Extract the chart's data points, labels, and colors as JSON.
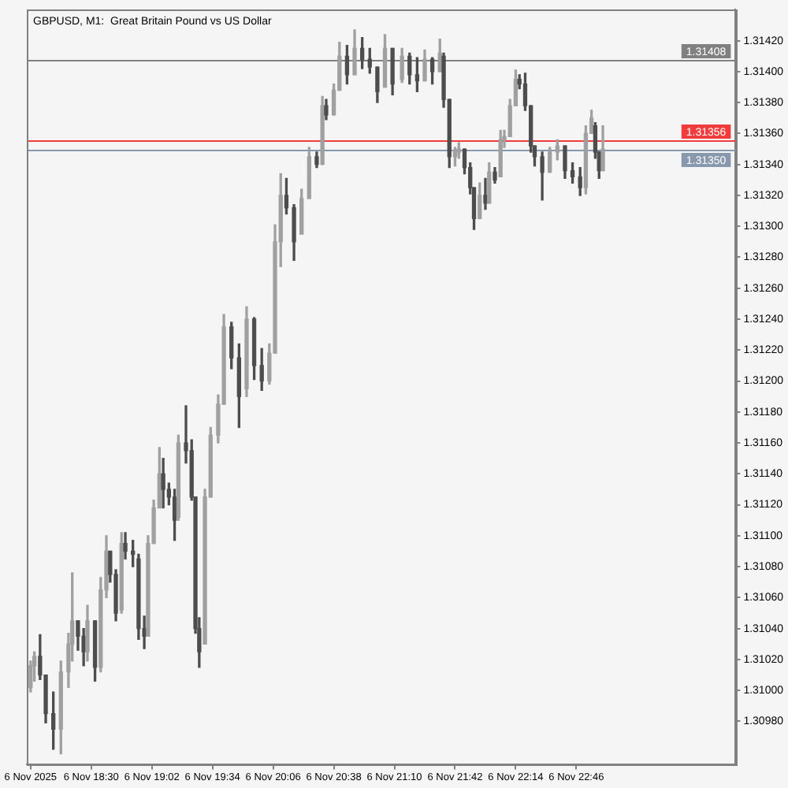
{
  "chart_data": {
    "type": "candlestick",
    "title": "GBPUSD, M1:",
    "subtitle": "Great Britain Pound vs US Dollar",
    "x": [
      "2025-11-06T17:58",
      "2025-11-06T18:00",
      "2025-11-06T18:03",
      "2025-11-06T18:06",
      "2025-11-06T18:10",
      "2025-11-06T18:14",
      "2025-11-06T18:18",
      "2025-11-06T18:20",
      "2025-11-06T18:23",
      "2025-11-06T18:26",
      "2025-11-06T18:28",
      "2025-11-06T18:32",
      "2025-11-06T18:35",
      "2025-11-06T18:38",
      "2025-11-06T18:40",
      "2025-11-06T18:43",
      "2025-11-06T18:46",
      "2025-11-06T18:48",
      "2025-11-06T18:52",
      "2025-11-06T18:55",
      "2025-11-06T18:58",
      "2025-11-06T19:00",
      "2025-11-06T19:03",
      "2025-11-06T19:06",
      "2025-11-06T19:08",
      "2025-11-06T19:11",
      "2025-11-06T19:14",
      "2025-11-06T19:16",
      "2025-11-06T19:20",
      "2025-11-06T19:23",
      "2025-11-06T19:25",
      "2025-11-06T19:27",
      "2025-11-06T19:30",
      "2025-11-06T19:33",
      "2025-11-06T19:37",
      "2025-11-06T19:40",
      "2025-11-06T19:44",
      "2025-11-06T19:48",
      "2025-11-06T19:52",
      "2025-11-06T19:56",
      "2025-11-06T20:00",
      "2025-11-06T20:04",
      "2025-11-06T20:07",
      "2025-11-06T20:10",
      "2025-11-06T20:13",
      "2025-11-06T20:17",
      "2025-11-06T20:21",
      "2025-11-06T20:25",
      "2025-11-06T20:29",
      "2025-11-06T20:32",
      "2025-11-06T20:34",
      "2025-11-06T20:38",
      "2025-11-06T20:41",
      "2025-11-06T20:45",
      "2025-11-06T20:49",
      "2025-11-06T20:53",
      "2025-11-06T20:57",
      "2025-11-06T21:01",
      "2025-11-06T21:05",
      "2025-11-06T21:09",
      "2025-11-06T21:14",
      "2025-11-06T21:18",
      "2025-11-06T21:22",
      "2025-11-06T21:26",
      "2025-11-06T21:30",
      "2025-11-06T21:34",
      "2025-11-06T21:36",
      "2025-11-06T21:39",
      "2025-11-06T21:42",
      "2025-11-06T21:44",
      "2025-11-06T21:47",
      "2025-11-06T21:50",
      "2025-11-06T21:52",
      "2025-11-06T21:55",
      "2025-11-06T21:58",
      "2025-11-06T22:00",
      "2025-11-06T22:03",
      "2025-11-06T22:06",
      "2025-11-06T22:08",
      "2025-11-06T22:11",
      "2025-11-06T22:14",
      "2025-11-06T22:16",
      "2025-11-06T22:19",
      "2025-11-06T22:22",
      "2025-11-06T22:24",
      "2025-11-06T22:28",
      "2025-11-06T22:32",
      "2025-11-06T22:36",
      "2025-11-06T22:40",
      "2025-11-06T22:44",
      "2025-11-06T22:48",
      "2025-11-06T22:51",
      "2025-11-06T22:54",
      "2025-11-06T22:56",
      "2025-11-06T22:58",
      "2025-11-06T23:00"
    ],
    "ohlc": [
      [
        1.31002,
        1.31019,
        1.30999,
        1.31016
      ],
      [
        1.31016,
        1.31025,
        1.31006,
        1.31022
      ],
      [
        1.31022,
        1.31036,
        1.31007,
        1.3101
      ],
      [
        1.3101,
        1.3101,
        1.30979,
        1.30985
      ],
      [
        1.30985,
        1.30999,
        1.30962,
        1.30975
      ],
      [
        1.30975,
        1.31019,
        1.30959,
        1.31012
      ],
      [
        1.31012,
        1.31037,
        1.31002,
        1.3103
      ],
      [
        1.3103,
        1.31076,
        1.31019,
        1.31045
      ],
      [
        1.31045,
        1.31045,
        1.31026,
        1.31035
      ],
      [
        1.31035,
        1.3104,
        1.31016,
        1.31025
      ],
      [
        1.31025,
        1.31055,
        1.31019,
        1.31045
      ],
      [
        1.31045,
        1.31045,
        1.31006,
        1.31015
      ],
      [
        1.31015,
        1.31073,
        1.31012,
        1.31065
      ],
      [
        1.31065,
        1.311,
        1.3106,
        1.3109
      ],
      [
        1.3109,
        1.3109,
        1.3107,
        1.31075
      ],
      [
        1.31075,
        1.31078,
        1.31045,
        1.3105
      ],
      [
        1.31052,
        1.31102,
        1.3105,
        1.31095
      ],
      [
        1.31095,
        1.31102,
        1.31085,
        1.3109
      ],
      [
        1.3109,
        1.31097,
        1.3108,
        1.31088
      ],
      [
        1.31085,
        1.31088,
        1.31033,
        1.3104
      ],
      [
        1.3104,
        1.31048,
        1.31027,
        1.31035
      ],
      [
        1.31035,
        1.311,
        1.31035,
        1.31095
      ],
      [
        1.31095,
        1.31123,
        1.31095,
        1.31118
      ],
      [
        1.31118,
        1.31157,
        1.31118,
        1.3114
      ],
      [
        1.3114,
        1.3115,
        1.31118,
        1.3113
      ],
      [
        1.3113,
        1.31134,
        1.3112,
        1.31125
      ],
      [
        1.31125,
        1.3113,
        1.31097,
        1.3111
      ],
      [
        1.31112,
        1.31165,
        1.3111,
        1.3116
      ],
      [
        1.3116,
        1.31184,
        1.31147,
        1.31155
      ],
      [
        1.31155,
        1.31162,
        1.31123,
        1.31125
      ],
      [
        1.31125,
        1.31125,
        1.31037,
        1.3104
      ],
      [
        1.3104,
        1.31047,
        1.31015,
        1.31025
      ],
      [
        1.3103,
        1.3113,
        1.3103,
        1.31125
      ],
      [
        1.31125,
        1.3117,
        1.31125,
        1.31165
      ],
      [
        1.31165,
        1.31191,
        1.3116,
        1.31185
      ],
      [
        1.31185,
        1.31243,
        1.31185,
        1.31235
      ],
      [
        1.31235,
        1.31238,
        1.31208,
        1.31215
      ],
      [
        1.31215,
        1.31224,
        1.3117,
        1.3119
      ],
      [
        1.31195,
        1.31248,
        1.3119,
        1.3124
      ],
      [
        1.3124,
        1.31241,
        1.31201,
        1.3121
      ],
      [
        1.3121,
        1.31221,
        1.31194,
        1.312
      ],
      [
        1.312,
        1.31224,
        1.31198,
        1.31218
      ],
      [
        1.31218,
        1.31301,
        1.31218,
        1.3129
      ],
      [
        1.3129,
        1.31334,
        1.31274,
        1.3132
      ],
      [
        1.3132,
        1.31331,
        1.31308,
        1.31312
      ],
      [
        1.31312,
        1.31314,
        1.31278,
        1.3129
      ],
      [
        1.31295,
        1.31324,
        1.31295,
        1.31318
      ],
      [
        1.31318,
        1.31351,
        1.31318,
        1.31345
      ],
      [
        1.31345,
        1.31348,
        1.31338,
        1.3134
      ],
      [
        1.3134,
        1.31384,
        1.3134,
        1.31378
      ],
      [
        1.31378,
        1.31382,
        1.31369,
        1.31372
      ],
      [
        1.31372,
        1.31392,
        1.31372,
        1.31388
      ],
      [
        1.31388,
        1.31419,
        1.31388,
        1.3141
      ],
      [
        1.3141,
        1.31417,
        1.31392,
        1.31398
      ],
      [
        1.31398,
        1.31427,
        1.31398,
        1.31415
      ],
      [
        1.31415,
        1.31422,
        1.31402,
        1.31408
      ],
      [
        1.31408,
        1.31415,
        1.31399,
        1.31403
      ],
      [
        1.31403,
        1.31403,
        1.3138,
        1.31387
      ],
      [
        1.3139,
        1.31424,
        1.3139,
        1.31415
      ],
      [
        1.31415,
        1.31415,
        1.31385,
        1.31392
      ],
      [
        1.31395,
        1.31415,
        1.31393,
        1.3141
      ],
      [
        1.3141,
        1.31412,
        1.31392,
        1.31398
      ],
      [
        1.31398,
        1.31409,
        1.31387,
        1.31394
      ],
      [
        1.31394,
        1.31414,
        1.31394,
        1.31408
      ],
      [
        1.31408,
        1.31409,
        1.31392,
        1.314
      ],
      [
        1.314,
        1.31421,
        1.314,
        1.31412
      ],
      [
        1.3141,
        1.31412,
        1.31377,
        1.31382
      ],
      [
        1.31382,
        1.31382,
        1.31338,
        1.31345
      ],
      [
        1.31345,
        1.31351,
        1.31339,
        1.31348
      ],
      [
        1.31348,
        1.31354,
        1.31344,
        1.3135
      ],
      [
        1.3135,
        1.3135,
        1.31334,
        1.31338
      ],
      [
        1.31338,
        1.31341,
        1.31321,
        1.31325
      ],
      [
        1.31325,
        1.31325,
        1.31298,
        1.31305
      ],
      [
        1.31305,
        1.31328,
        1.31305,
        1.3132
      ],
      [
        1.3132,
        1.31331,
        1.31311,
        1.31315
      ],
      [
        1.31315,
        1.31341,
        1.31315,
        1.31335
      ],
      [
        1.31335,
        1.31338,
        1.31328,
        1.3133
      ],
      [
        1.31332,
        1.31362,
        1.31332,
        1.31356
      ],
      [
        1.31356,
        1.31362,
        1.31351,
        1.31358
      ],
      [
        1.31358,
        1.31382,
        1.31358,
        1.31378
      ],
      [
        1.31378,
        1.31401,
        1.31378,
        1.31395
      ],
      [
        1.31395,
        1.31398,
        1.31389,
        1.31392
      ],
      [
        1.31392,
        1.31399,
        1.31375,
        1.31378
      ],
      [
        1.31378,
        1.31378,
        1.31348,
        1.31352
      ],
      [
        1.31352,
        1.31352,
        1.31339,
        1.31345
      ],
      [
        1.31345,
        1.31348,
        1.31317,
        1.31335
      ],
      [
        1.31335,
        1.31351,
        1.31335,
        1.31348
      ],
      [
        1.31348,
        1.31356,
        1.31343,
        1.31352
      ],
      [
        1.31352,
        1.31352,
        1.31331,
        1.31336
      ],
      [
        1.31336,
        1.31341,
        1.31328,
        1.31332
      ],
      [
        1.31332,
        1.31338,
        1.3132,
        1.31325
      ],
      [
        1.31325,
        1.31365,
        1.31321,
        1.3136
      ],
      [
        1.3136,
        1.31375,
        1.3136,
        1.3137
      ],
      [
        1.31365,
        1.31367,
        1.31344,
        1.31348
      ],
      [
        1.31348,
        1.31348,
        1.31331,
        1.31336
      ],
      [
        1.31336,
        1.31365,
        1.31336,
        1.3135
      ]
    ],
    "colors": [
      "#a0a0a0",
      "#a0a0a0",
      "#4d4d4d",
      "#4d4d4d",
      "#4d4d4d",
      "#a0a0a0",
      "#a0a0a0",
      "#a0a0a0",
      "#4d4d4d",
      "#4d4d4d",
      "#a0a0a0",
      "#4d4d4d",
      "#a0a0a0",
      "#a0a0a0",
      "#4d4d4d",
      "#4d4d4d",
      "#a0a0a0",
      "#4d4d4d",
      "#4d4d4d",
      "#4d4d4d",
      "#4d4d4d",
      "#a0a0a0",
      "#a0a0a0",
      "#a0a0a0",
      "#4d4d4d",
      "#4d4d4d",
      "#4d4d4d",
      "#a0a0a0",
      "#4d4d4d",
      "#4d4d4d",
      "#4d4d4d",
      "#4d4d4d",
      "#a0a0a0",
      "#a0a0a0",
      "#a0a0a0",
      "#a0a0a0",
      "#4d4d4d",
      "#4d4d4d",
      "#a0a0a0",
      "#4d4d4d",
      "#4d4d4d",
      "#a0a0a0",
      "#a0a0a0",
      "#a0a0a0",
      "#4d4d4d",
      "#4d4d4d",
      "#a0a0a0",
      "#a0a0a0",
      "#4d4d4d",
      "#a0a0a0",
      "#4d4d4d",
      "#a0a0a0",
      "#a0a0a0",
      "#4d4d4d",
      "#a0a0a0",
      "#4d4d4d",
      "#4d4d4d",
      "#4d4d4d",
      "#a0a0a0",
      "#4d4d4d",
      "#a0a0a0",
      "#4d4d4d",
      "#4d4d4d",
      "#a0a0a0",
      "#4d4d4d",
      "#a0a0a0",
      "#4d4d4d",
      "#4d4d4d",
      "#a0a0a0",
      "#a0a0a0",
      "#4d4d4d",
      "#4d4d4d",
      "#4d4d4d",
      "#a0a0a0",
      "#4d4d4d",
      "#a0a0a0",
      "#4d4d4d",
      "#a0a0a0",
      "#a0a0a0",
      "#a0a0a0",
      "#a0a0a0",
      "#4d4d4d",
      "#4d4d4d",
      "#4d4d4d",
      "#4d4d4d",
      "#4d4d4d",
      "#a0a0a0",
      "#a0a0a0",
      "#4d4d4d",
      "#4d4d4d",
      "#4d4d4d",
      "#a0a0a0",
      "#a0a0a0",
      "#4d4d4d",
      "#4d4d4d",
      "#a0a0a0"
    ],
    "xlim": [
      "2025-11-06T17:56",
      "2025-11-07T00:10"
    ],
    "xticks": [
      {
        "value": "2025-11-06T17:58",
        "label": "6 Nov 2025"
      },
      {
        "value": "2025-11-06T18:30",
        "label": "6 Nov 18:30"
      },
      {
        "value": "2025-11-06T19:02",
        "label": "6 Nov 19:02"
      },
      {
        "value": "2025-11-06T19:34",
        "label": "6 Nov 19:34"
      },
      {
        "value": "2025-11-06T20:06",
        "label": "6 Nov 20:06"
      },
      {
        "value": "2025-11-06T20:38",
        "label": "6 Nov 20:38"
      },
      {
        "value": "2025-11-06T21:10",
        "label": "6 Nov 21:10"
      },
      {
        "value": "2025-11-06T21:42",
        "label": "6 Nov 21:42"
      },
      {
        "value": "2025-11-06T22:14",
        "label": "6 Nov 22:14"
      },
      {
        "value": "2025-11-06T22:46",
        "label": "6 Nov 22:46"
      }
    ],
    "ylim": [
      1.30952,
      1.3144
    ],
    "yticks": [
      {
        "value": 1.3098,
        "label": "1.30980"
      },
      {
        "value": 1.31,
        "label": "1.31000"
      },
      {
        "value": 1.3102,
        "label": "1.31020"
      },
      {
        "value": 1.3104,
        "label": "1.31040"
      },
      {
        "value": 1.3106,
        "label": "1.31060"
      },
      {
        "value": 1.3108,
        "label": "1.31080"
      },
      {
        "value": 1.311,
        "label": "1.31100"
      },
      {
        "value": 1.3112,
        "label": "1.31120"
      },
      {
        "value": 1.3114,
        "label": "1.31140"
      },
      {
        "value": 1.3116,
        "label": "1.31160"
      },
      {
        "value": 1.3118,
        "label": "1.31180"
      },
      {
        "value": 1.312,
        "label": "1.31200"
      },
      {
        "value": 1.3122,
        "label": "1.31220"
      },
      {
        "value": 1.3124,
        "label": "1.31240"
      },
      {
        "value": 1.3126,
        "label": "1.31260"
      },
      {
        "value": 1.3128,
        "label": "1.31280"
      },
      {
        "value": 1.313,
        "label": "1.31300"
      },
      {
        "value": 1.3132,
        "label": "1.31320"
      },
      {
        "value": 1.3134,
        "label": "1.31340"
      },
      {
        "value": 1.3136,
        "label": "1.31360"
      },
      {
        "value": 1.3138,
        "label": "1.31380"
      },
      {
        "value": 1.314,
        "label": "1.31400"
      },
      {
        "value": 1.3142,
        "label": "1.31420"
      }
    ],
    "ref_lines": [
      {
        "axis": "y",
        "value": 1.31408,
        "label": "1.31408",
        "color": "#808080"
      },
      {
        "axis": "y",
        "value": 1.31356,
        "label": "1.31356",
        "color": "#f03c3c"
      },
      {
        "axis": "y",
        "value": 1.3135,
        "label": "1.31350",
        "color": "#8898ad"
      }
    ]
  }
}
